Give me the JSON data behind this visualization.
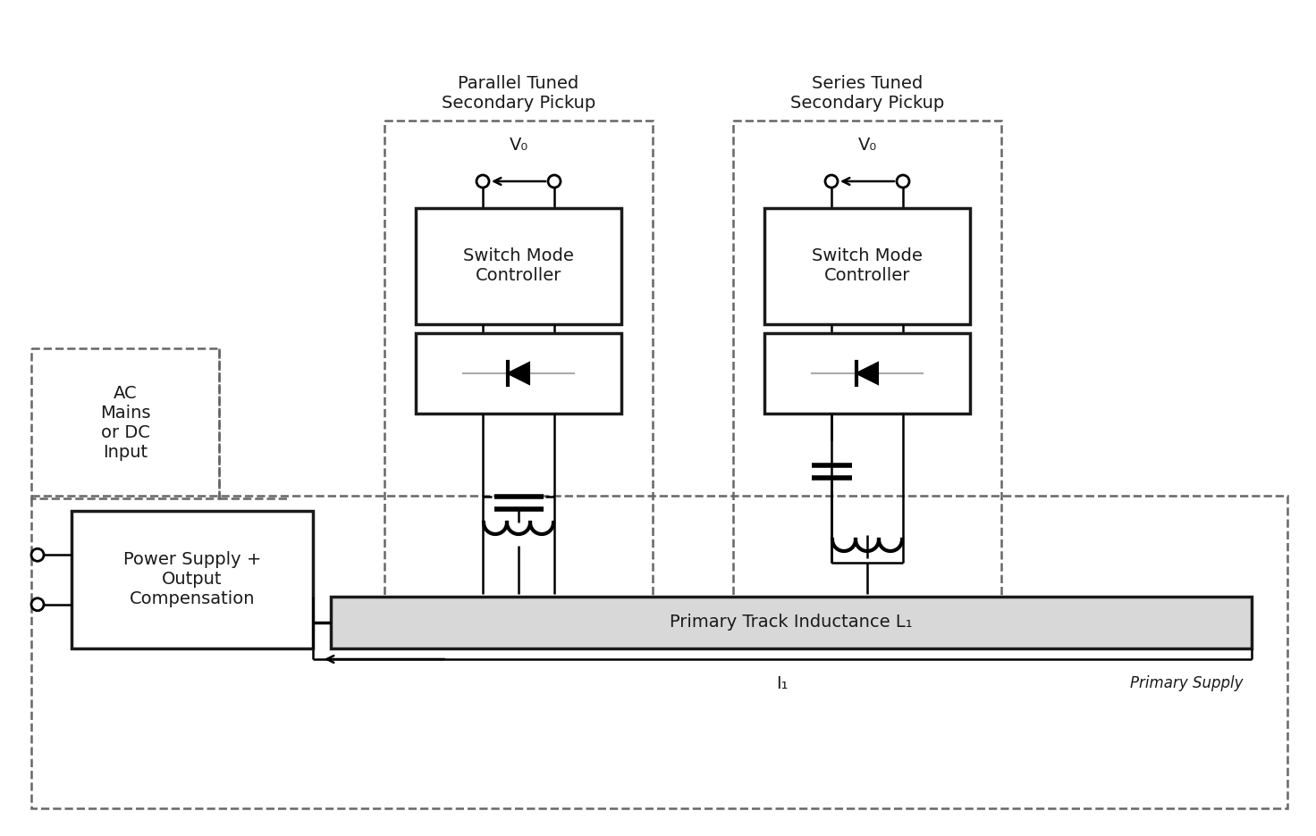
{
  "bg_color": "#ffffff",
  "parallel_label": "Parallel Tuned\nSecondary Pickup",
  "series_label": "Series Tuned\nSecondary Pickup",
  "primary_track_label": "Primary Track Inductance L₁",
  "primary_supply_label": "Primary Supply",
  "power_supply_label": "Power Supply +\nOutput\nCompensation",
  "ac_mains_label": "AC\nMains\nor DC\nInput",
  "switch_mode_label": "Switch Mode\nController",
  "Vo_label": "V₀",
  "I1_label": "I₁",
  "black": "#1a1a1a",
  "dashed_color": "#666666",
  "track_fill": "#d8d8d8"
}
